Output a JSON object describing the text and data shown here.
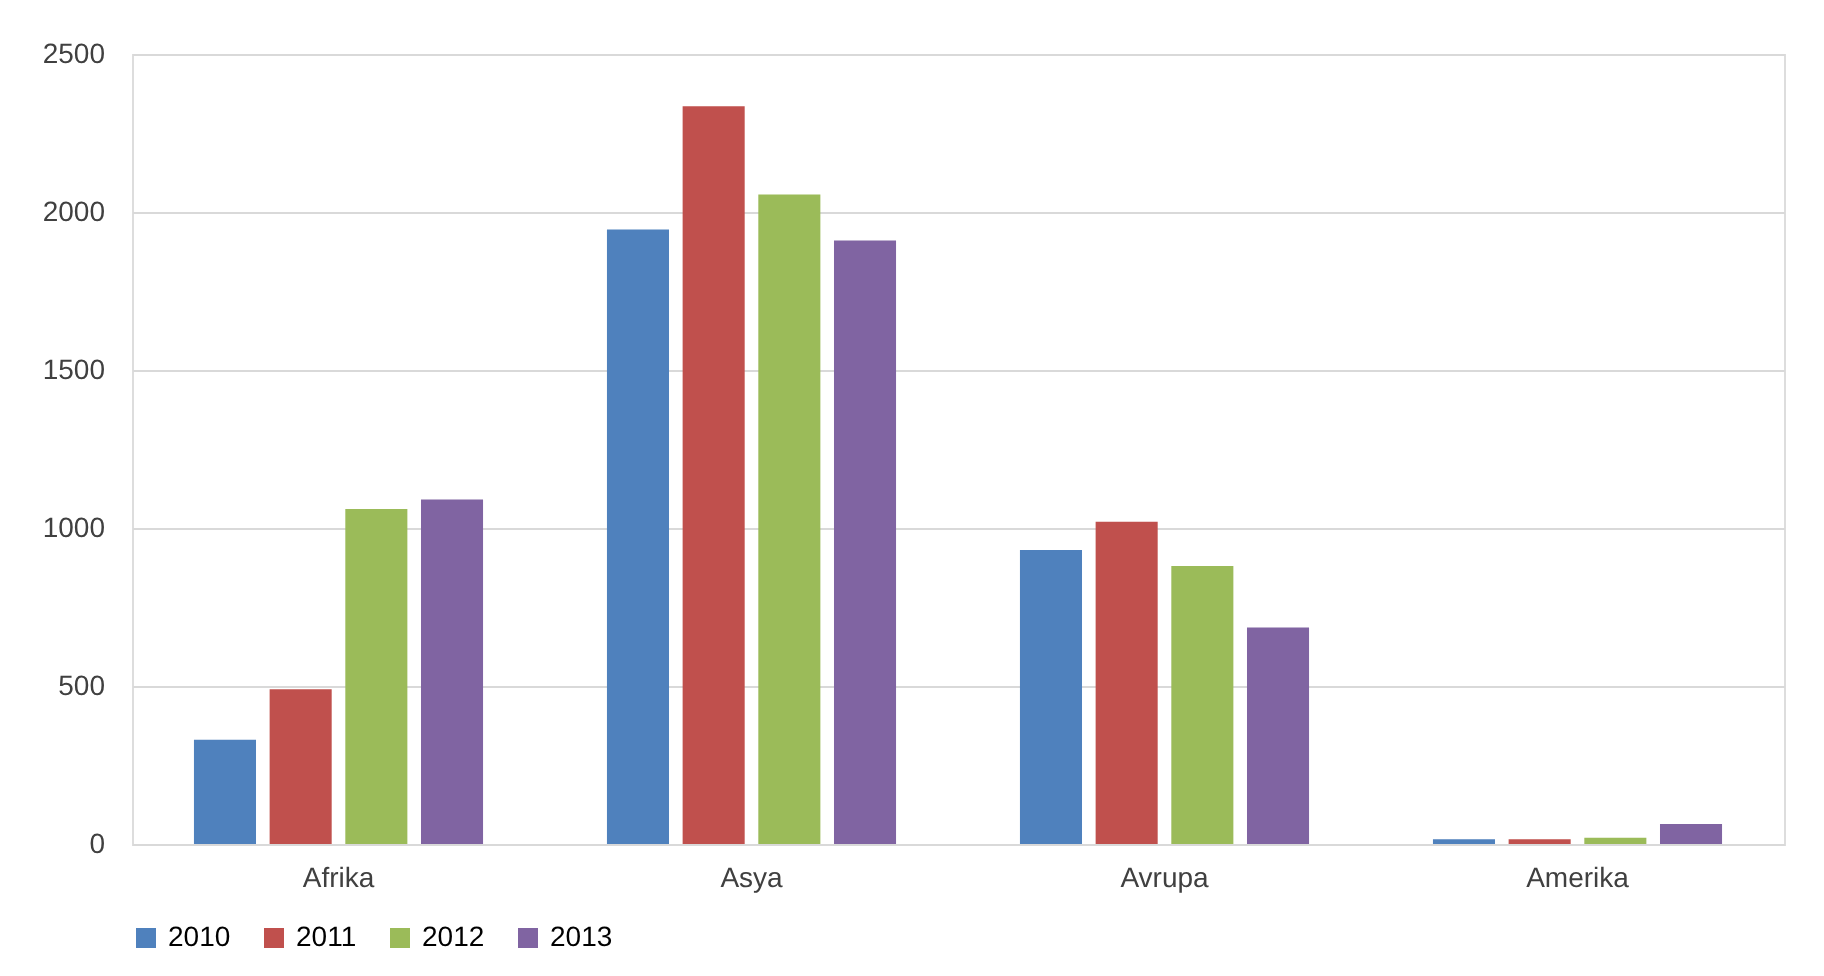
{
  "chart_data": {
    "type": "bar",
    "categories": [
      "Afrika",
      "Asya",
      "Avrupa",
      "Amerika"
    ],
    "series": [
      {
        "name": "2010",
        "color": "#4f81bd",
        "values": [
          330,
          1945,
          930,
          15
        ]
      },
      {
        "name": "2011",
        "color": "#c0504d",
        "values": [
          490,
          2335,
          1020,
          15
        ]
      },
      {
        "name": "2012",
        "color": "#9bbb59",
        "values": [
          1060,
          2055,
          880,
          20
        ]
      },
      {
        "name": "2013",
        "color": "#8064a2",
        "values": [
          1090,
          1910,
          685,
          63
        ]
      }
    ],
    "ylim": [
      0,
      2500
    ],
    "yticks": [
      0,
      500,
      1000,
      1500,
      2000,
      2500
    ],
    "grid": "y",
    "legend": "bottom"
  }
}
